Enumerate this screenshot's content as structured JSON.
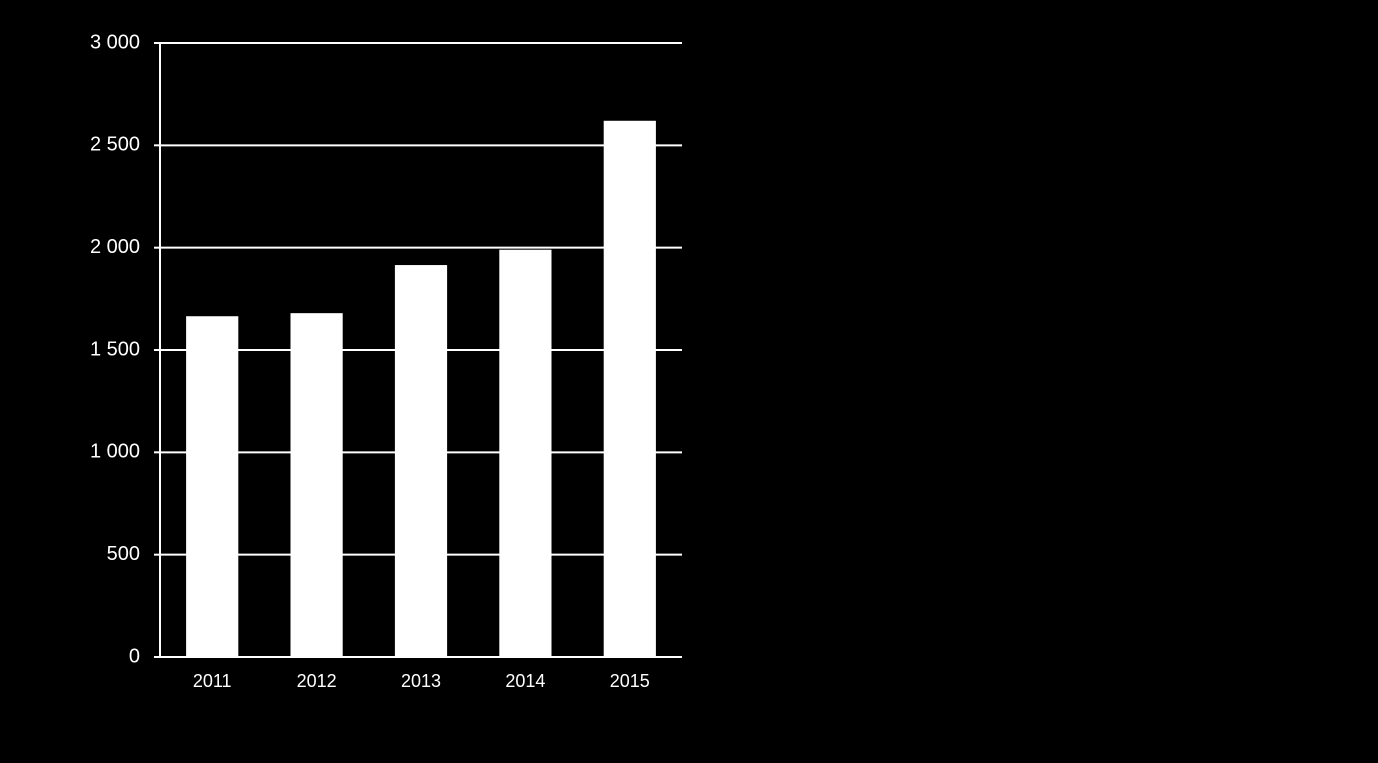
{
  "chart_data": {
    "type": "bar",
    "categories": [
      "2011",
      "2012",
      "2013",
      "2014",
      "2015"
    ],
    "values": [
      1665,
      1680,
      1915,
      1990,
      2620
    ],
    "color": "#ffffff",
    "ylim": [
      0,
      3000
    ],
    "yticks": [
      0,
      500,
      {
        "value": 1000,
        "label": "1 000"
      },
      {
        "value": 1500,
        "label": "1 500"
      },
      {
        "value": 2000,
        "label": "2 000"
      },
      {
        "value": 2500,
        "label": "2 500"
      },
      {
        "value": 3000,
        "label": "3 000"
      }
    ],
    "grid": true
  }
}
